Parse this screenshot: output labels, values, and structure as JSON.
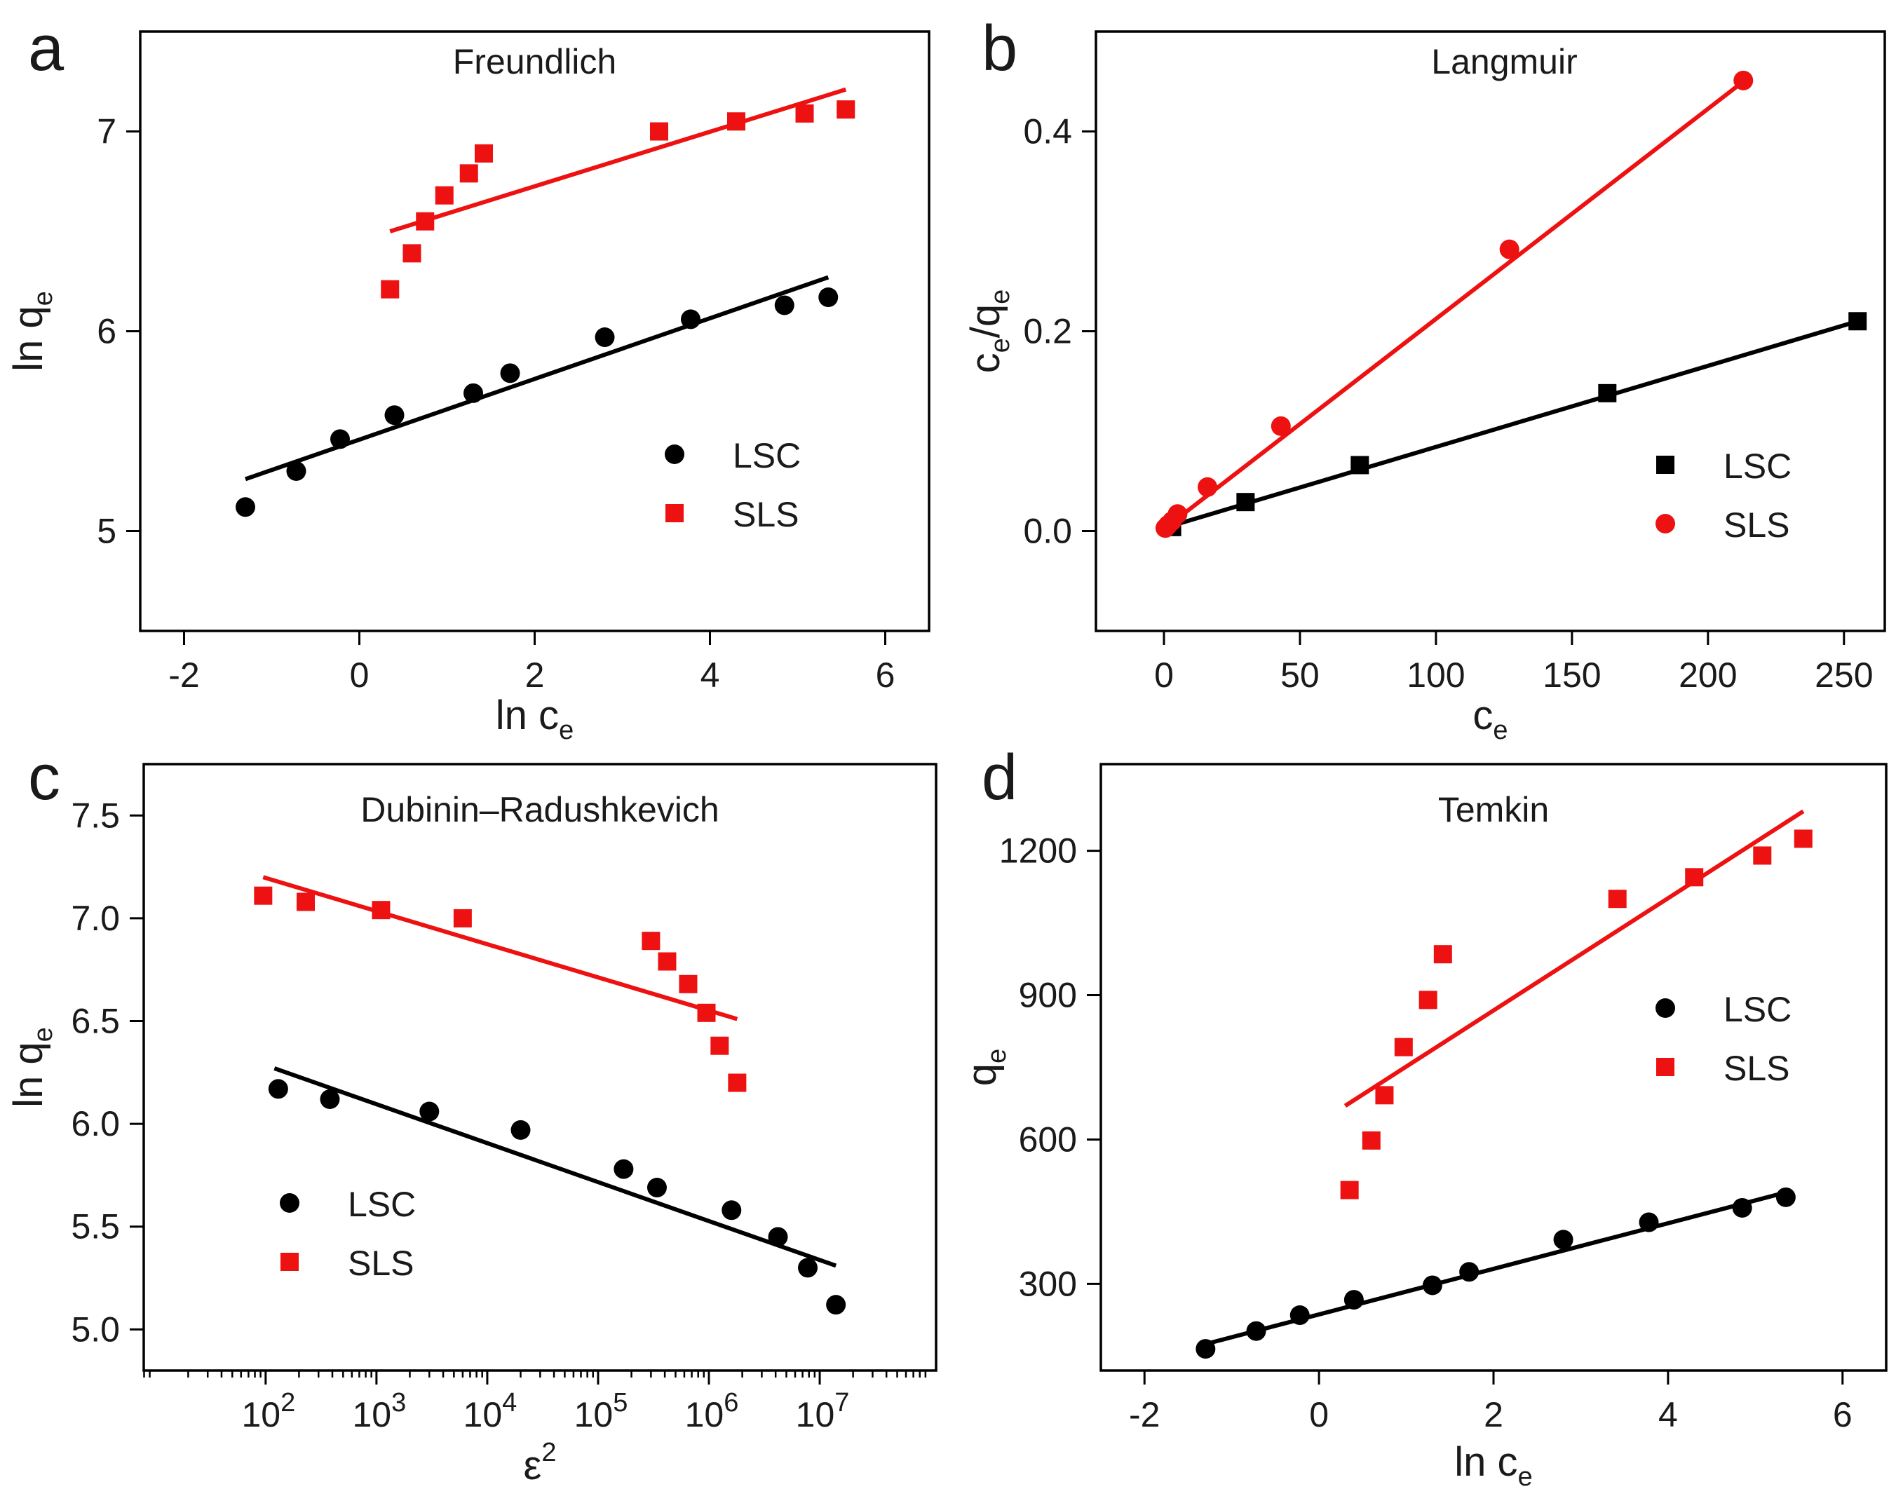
{
  "colors": {
    "LSC": "#000000",
    "SLS": "#ee1111",
    "frame": "#000000"
  },
  "chart_data": [
    {
      "panel": "a",
      "type": "scatter",
      "title": "Freundlich",
      "xlabel": {
        "main": "ln c",
        "sub": "e"
      },
      "ylabel": {
        "main": "ln q",
        "sub": "e"
      },
      "xlim": [
        -2.5,
        6.5
      ],
      "ylim": [
        4.5,
        7.5
      ],
      "xticks": [
        -2,
        0,
        2,
        4,
        6
      ],
      "xtick_labels": [
        "-2",
        "0",
        "2",
        "4",
        "6"
      ],
      "yticks": [
        5,
        6,
        7
      ],
      "ytick_labels": [
        "5",
        "6",
        "7"
      ],
      "legend": {
        "position": "lower-right",
        "entries": [
          "LSC",
          "SLS"
        ]
      },
      "series": [
        {
          "name": "LSC",
          "marker": "circle",
          "x": [
            -1.3,
            -0.72,
            -0.22,
            0.4,
            1.3,
            1.72,
            2.8,
            3.78,
            4.85,
            5.35
          ],
          "y": [
            5.12,
            5.3,
            5.46,
            5.58,
            5.69,
            5.79,
            5.97,
            6.06,
            6.13,
            6.17
          ],
          "fit": {
            "x": [
              -1.3,
              5.35
            ],
            "y": [
              5.26,
              6.27
            ]
          }
        },
        {
          "name": "SLS",
          "marker": "square",
          "x": [
            0.35,
            0.6,
            0.75,
            0.97,
            1.25,
            1.42,
            3.42,
            4.3,
            5.08,
            5.55
          ],
          "y": [
            6.21,
            6.39,
            6.55,
            6.68,
            6.79,
            6.89,
            7.0,
            7.05,
            7.09,
            7.11
          ],
          "fit": {
            "x": [
              0.35,
              5.55
            ],
            "y": [
              6.5,
              7.21
            ]
          }
        }
      ]
    },
    {
      "panel": "b",
      "type": "scatter",
      "title": "Langmuir",
      "xlabel": {
        "main": "c",
        "sub": "e"
      },
      "ylabel": {
        "main": "c",
        "sub": "e",
        "mid": "/q",
        "sub2": "e"
      },
      "xlim": [
        -25,
        265
      ],
      "ylim": [
        -0.1,
        0.5
      ],
      "xticks": [
        0,
        50,
        100,
        150,
        200,
        250
      ],
      "xtick_labels": [
        "0",
        "50",
        "100",
        "150",
        "200",
        "250"
      ],
      "yticks": [
        0.0,
        0.2,
        0.4
      ],
      "ytick_labels": [
        "0.0",
        "0.2",
        "0.4"
      ],
      "legend": {
        "position": "lower-right",
        "entries": [
          "LSC",
          "SLS"
        ]
      },
      "series": [
        {
          "name": "LSC",
          "marker": "square",
          "x": [
            3,
            30,
            72,
            163,
            255
          ],
          "y": [
            0.004,
            0.029,
            0.066,
            0.138,
            0.21
          ],
          "fit": {
            "x": [
              0,
              255
            ],
            "y": [
              0.003,
              0.21
            ]
          }
        },
        {
          "name": "SLS",
          "marker": "circle",
          "x": [
            0.5,
            1.5,
            3,
            5,
            16,
            43,
            127,
            213
          ],
          "y": [
            0.003,
            0.006,
            0.01,
            0.017,
            0.044,
            0.105,
            0.282,
            0.451
          ],
          "fit": {
            "x": [
              0,
              213
            ],
            "y": [
              0.002,
              0.45
            ]
          }
        }
      ]
    },
    {
      "panel": "c",
      "type": "scatter",
      "x_scale": "log",
      "title": "Dubinin–Radushkevich",
      "xlabel": {
        "main": "ε",
        "sup": "2"
      },
      "ylabel": {
        "main": "ln q",
        "sub": "e"
      },
      "xlim_log10": [
        0.9,
        8.05
      ],
      "ylim": [
        4.8,
        7.75
      ],
      "xticks_log10": [
        2,
        3,
        4,
        5,
        6,
        7
      ],
      "xtick_labels": [
        {
          "base": "10",
          "exp": "2"
        },
        {
          "base": "10",
          "exp": "3"
        },
        {
          "base": "10",
          "exp": "4"
        },
        {
          "base": "10",
          "exp": "5"
        },
        {
          "base": "10",
          "exp": "6"
        },
        {
          "base": "10",
          "exp": "7"
        }
      ],
      "yticks": [
        5.0,
        5.5,
        6.0,
        6.5,
        7.0,
        7.5
      ],
      "ytick_labels": [
        "5.0",
        "5.5",
        "6.0",
        "6.5",
        "7.0",
        "7.5"
      ],
      "legend": {
        "position": "lower-left",
        "entries": [
          "LSC",
          "SLS"
        ]
      },
      "series": [
        {
          "name": "LSC",
          "marker": "circle",
          "x": [
            130,
            380,
            3000,
            20000,
            170000,
            340000,
            1600000,
            4200000,
            7800000,
            14000000
          ],
          "y": [
            6.17,
            6.12,
            6.06,
            5.97,
            5.78,
            5.69,
            5.58,
            5.45,
            5.3,
            5.12
          ],
          "fit": {
            "x": [
              120,
              14000000
            ],
            "y": [
              6.27,
              5.31
            ]
          }
        },
        {
          "name": "SLS",
          "marker": "square",
          "x": [
            95,
            230,
            1100,
            6000,
            300000,
            420000,
            650000,
            950000,
            1250000,
            1800000
          ],
          "y": [
            7.11,
            7.08,
            7.04,
            7.0,
            6.89,
            6.79,
            6.68,
            6.54,
            6.38,
            6.2
          ],
          "fit": {
            "x": [
              95,
              1800000
            ],
            "y": [
              7.2,
              6.51
            ]
          }
        }
      ]
    },
    {
      "panel": "d",
      "type": "scatter",
      "title": "Temkin",
      "xlabel": {
        "main": "ln c",
        "sub": "e"
      },
      "ylabel": {
        "main": "q",
        "sub": "e"
      },
      "xlim": [
        -2.5,
        6.5
      ],
      "ylim": [
        120,
        1380
      ],
      "xticks": [
        -2,
        0,
        2,
        4,
        6
      ],
      "xtick_labels": [
        "-2",
        "0",
        "2",
        "4",
        "6"
      ],
      "yticks": [
        300,
        600,
        900,
        1200
      ],
      "ytick_labels": [
        "300",
        "600",
        "900",
        "1200"
      ],
      "legend": {
        "position": "right",
        "entries": [
          "LSC",
          "SLS"
        ]
      },
      "series": [
        {
          "name": "LSC",
          "marker": "circle",
          "x": [
            -1.3,
            -0.72,
            -0.22,
            0.4,
            1.3,
            1.72,
            2.8,
            3.78,
            4.85,
            5.35
          ],
          "y": [
            165,
            202,
            235,
            267,
            297,
            325,
            392,
            428,
            458,
            480
          ],
          "fit": {
            "x": [
              -1.3,
              5.35
            ],
            "y": [
              175,
              490
            ]
          }
        },
        {
          "name": "SLS",
          "marker": "square",
          "x": [
            0.35,
            0.6,
            0.75,
            0.97,
            1.25,
            1.42,
            3.42,
            4.3,
            5.08,
            5.55
          ],
          "y": [
            495,
            598,
            692,
            792,
            890,
            985,
            1100,
            1145,
            1190,
            1225
          ],
          "fit": {
            "x": [
              0.3,
              5.55
            ],
            "y": [
              670,
              1282
            ]
          }
        }
      ]
    }
  ]
}
